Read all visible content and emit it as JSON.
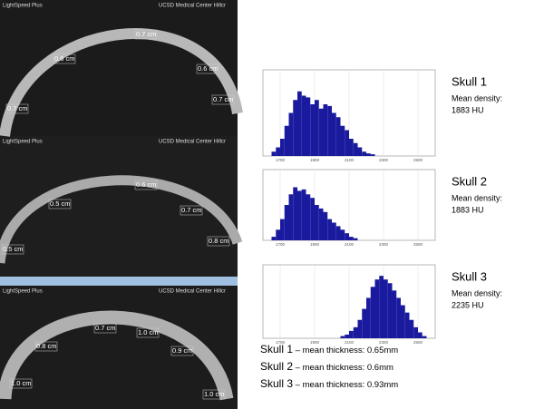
{
  "ct_images": [
    {
      "header": "LightSpeed Plus",
      "hospital": "UCSD Medical Center Hillcr",
      "labels": [
        "0.7 cm",
        "0.6 cm",
        "0.6 cm",
        "0.7 cm",
        "0.7 cm"
      ]
    },
    {
      "header": "LightSpeed Plus",
      "hospital": "UCSD Medical Center Hillcr",
      "labels": [
        "0.6 cm",
        "0.5 cm",
        "0.7 cm",
        "0.8 cm",
        "0.5 cm"
      ]
    },
    {
      "header": "LightSpeed Plus",
      "hospital": "UCSD Medical Center Hillcr",
      "labels": [
        "0.7 cm",
        "1.0 cm",
        "0.8 cm",
        "0.9 cm",
        "1.0 cm",
        "1.0 cm"
      ]
    }
  ],
  "chart_data": [
    {
      "type": "histogram",
      "name": "Skull 1",
      "note_label": "Mean density:",
      "note_value": "1883 HU",
      "color": "#1a1a9e",
      "bins": [
        1650,
        1675,
        1700,
        1725,
        1750,
        1775,
        1800,
        1825,
        1850,
        1875,
        1900,
        1925,
        1950,
        1975,
        2000,
        2025,
        2050,
        2075,
        2100,
        2125,
        2150,
        2175,
        2200,
        2225,
        2250
      ],
      "counts": [
        0.5,
        1,
        2,
        3.5,
        5,
        6.5,
        7.5,
        7,
        6.8,
        6,
        6.5,
        5.5,
        6,
        5.8,
        5,
        4.5,
        3.5,
        3,
        2,
        1.5,
        1,
        0.5,
        0.3,
        0.2
      ],
      "xlim": [
        1600,
        2600
      ],
      "xticks": [
        1700,
        1900,
        2100,
        2300,
        2500
      ],
      "ylim": [
        0,
        10
      ]
    },
    {
      "type": "histogram",
      "name": "Skull 2",
      "note_label": "Mean density:",
      "note_value": "1883 HU",
      "color": "#1a1a9e",
      "bins": [
        1650,
        1675,
        1700,
        1725,
        1750,
        1775,
        1800,
        1825,
        1850,
        1875,
        1900,
        1925,
        1950,
        1975,
        2000,
        2025,
        2050,
        2075,
        2100,
        2125,
        2150
      ],
      "counts": [
        0.5,
        1.5,
        3,
        5,
        6.5,
        7.5,
        7,
        7.2,
        6.5,
        6,
        5,
        4.5,
        4,
        3,
        2.5,
        2,
        1.5,
        1,
        0.5,
        0.3
      ],
      "xlim": [
        1600,
        2600
      ],
      "xticks": [
        1700,
        1900,
        2100,
        2300,
        2500
      ],
      "ylim": [
        0,
        10
      ]
    },
    {
      "type": "histogram",
      "name": "Skull 3",
      "note_label": "Mean density:",
      "note_value": "2235 HU",
      "color": "#1a1a9e",
      "bins": [
        2050,
        2075,
        2100,
        2125,
        2150,
        2175,
        2200,
        2225,
        2250,
        2275,
        2300,
        2325,
        2350,
        2375,
        2400,
        2425,
        2450,
        2475,
        2500,
        2525,
        2550
      ],
      "counts": [
        0.3,
        0.5,
        1,
        1.5,
        2.5,
        4,
        5.5,
        7,
        8,
        8.5,
        8,
        7.5,
        6.5,
        5.5,
        4.5,
        3.5,
        2.5,
        1.5,
        0.8,
        0.3
      ],
      "xlim": [
        1600,
        2600
      ],
      "xticks": [
        1700,
        1900,
        2100,
        2300,
        2500
      ],
      "ylim": [
        0,
        10
      ]
    }
  ],
  "summary": [
    {
      "name": "Skull 1",
      "detail": "– mean thickness: 0.65mm"
    },
    {
      "name": "Skull 2",
      "detail": "– mean thickness: 0.6mm"
    },
    {
      "name": "Skull 3",
      "detail": "– mean thickness: 0.93mm"
    }
  ]
}
